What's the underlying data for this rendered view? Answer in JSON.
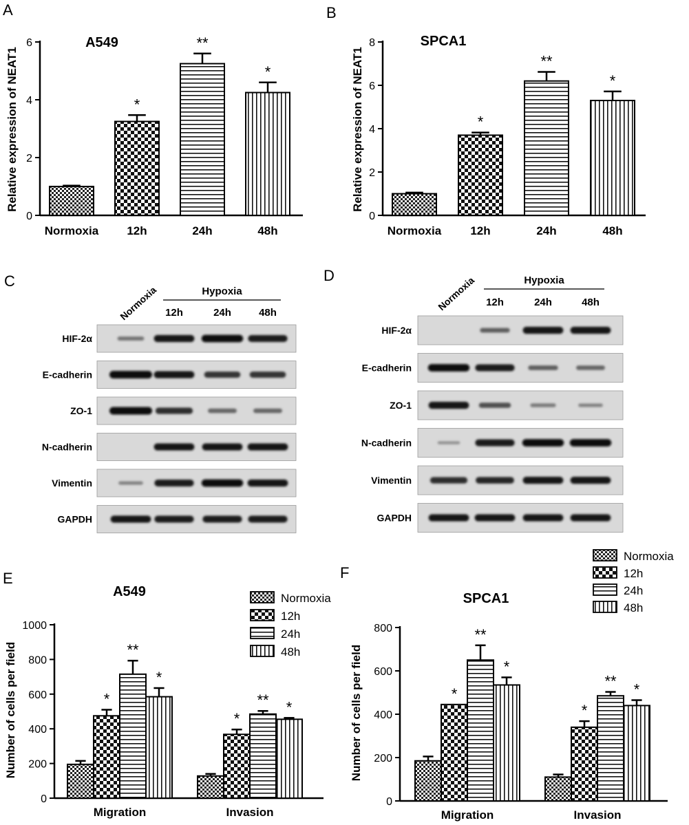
{
  "panels": {
    "A": {
      "letter": "A",
      "title": "A549",
      "ylabel": "Relative expression of NEAT1"
    },
    "B": {
      "letter": "B",
      "title": "SPCA1",
      "ylabel": "Relative expression of NEAT1"
    },
    "C": {
      "letter": "C"
    },
    "D": {
      "letter": "D"
    },
    "E": {
      "letter": "E",
      "title": "A549",
      "ylabel": "Number of cells per field"
    },
    "F": {
      "letter": "F",
      "title": "SPCA1",
      "ylabel": "Number of cells per field"
    }
  },
  "legend": [
    "Normoxia",
    "12h",
    "24h",
    "48h"
  ],
  "blots": {
    "C": {
      "normoxia_label": "Normoxia",
      "hypoxia_label": "Hypoxia",
      "timepoints": [
        "12h",
        "24h",
        "48h"
      ],
      "proteins": [
        "HIF-2α",
        "E-cadherin",
        "ZO-1",
        "N-cadherin",
        "Vimentin",
        "GAPDH"
      ],
      "intensity": [
        [
          0.25,
          0.9,
          0.95,
          0.85
        ],
        [
          1.0,
          0.9,
          0.7,
          0.7
        ],
        [
          1.0,
          0.75,
          0.35,
          0.35
        ],
        [
          0.0,
          0.9,
          0.9,
          0.9
        ],
        [
          0.15,
          0.85,
          0.95,
          0.9
        ],
        [
          0.9,
          0.85,
          0.85,
          0.85
        ]
      ]
    },
    "D": {
      "normoxia_label": "Normoxia",
      "hypoxia_label": "Hypoxia",
      "timepoints": [
        "12h",
        "24h",
        "48h"
      ],
      "proteins": [
        "HIF-2α",
        "E-cadherin",
        "ZO-1",
        "N-cadherin",
        "Vimentin",
        "GAPDH"
      ],
      "intensity": [
        [
          0.0,
          0.4,
          0.9,
          0.9
        ],
        [
          0.95,
          0.85,
          0.4,
          0.35
        ],
        [
          0.9,
          0.5,
          0.2,
          0.15
        ],
        [
          0.05,
          0.85,
          0.95,
          0.95
        ],
        [
          0.75,
          0.8,
          0.9,
          0.9
        ],
        [
          0.9,
          0.9,
          0.9,
          0.9
        ]
      ]
    }
  },
  "chart_data": [
    {
      "panel": "A",
      "type": "bar",
      "title": "A549",
      "xlabel": "",
      "ylabel": "Relative expression of NEAT1",
      "categories": [
        "Normoxia",
        "12h",
        "24h",
        "48h"
      ],
      "values": [
        1.0,
        3.25,
        5.25,
        4.25
      ],
      "errors": [
        0.03,
        0.22,
        0.35,
        0.35
      ],
      "significance": [
        "",
        "*",
        "**",
        "*"
      ],
      "ylim": [
        0,
        6
      ],
      "yticks": [
        0,
        2,
        4,
        6
      ]
    },
    {
      "panel": "B",
      "type": "bar",
      "title": "SPCA1",
      "xlabel": "",
      "ylabel": "Relative expression of NEAT1",
      "categories": [
        "Normoxia",
        "12h",
        "24h",
        "48h"
      ],
      "values": [
        1.0,
        3.7,
        6.2,
        5.3
      ],
      "errors": [
        0.05,
        0.12,
        0.42,
        0.42
      ],
      "significance": [
        "",
        "*",
        "**",
        "*"
      ],
      "ylim": [
        0,
        8
      ],
      "yticks": [
        0,
        2,
        4,
        6,
        8
      ]
    },
    {
      "panel": "E",
      "type": "bar",
      "title": "A549",
      "xlabel": "",
      "ylabel": "Number of cells per field",
      "categories": [
        "Migration",
        "Invasion"
      ],
      "series": [
        {
          "name": "Normoxia",
          "values": [
            195,
            128
          ],
          "errors": [
            20,
            12
          ],
          "significance": [
            "",
            ""
          ]
        },
        {
          "name": "12h",
          "values": [
            475,
            368
          ],
          "errors": [
            35,
            28
          ],
          "significance": [
            "*",
            "*"
          ]
        },
        {
          "name": "24h",
          "values": [
            715,
            485
          ],
          "errors": [
            78,
            18
          ],
          "significance": [
            "**",
            "**"
          ]
        },
        {
          "name": "48h",
          "values": [
            585,
            455
          ],
          "errors": [
            50,
            8
          ],
          "significance": [
            "*",
            "*"
          ]
        }
      ],
      "ylim": [
        0,
        1000
      ],
      "yticks": [
        0,
        200,
        400,
        600,
        800,
        1000
      ]
    },
    {
      "panel": "F",
      "type": "bar",
      "title": "SPCA1",
      "xlabel": "",
      "ylabel": "Number of cells per field",
      "categories": [
        "Migration",
        "Invasion"
      ],
      "series": [
        {
          "name": "Normoxia",
          "values": [
            185,
            110
          ],
          "errors": [
            20,
            12
          ],
          "significance": [
            "",
            ""
          ]
        },
        {
          "name": "12h",
          "values": [
            445,
            340
          ],
          "errors": [
            0,
            28
          ],
          "significance": [
            "*",
            "*"
          ]
        },
        {
          "name": "24h",
          "values": [
            650,
            485
          ],
          "errors": [
            68,
            18
          ],
          "significance": [
            "**",
            "**"
          ]
        },
        {
          "name": "48h",
          "values": [
            535,
            440
          ],
          "errors": [
            35,
            25
          ],
          "significance": [
            "*",
            "*"
          ]
        }
      ],
      "ylim": [
        0,
        800
      ],
      "yticks": [
        0,
        200,
        400,
        600,
        800
      ]
    }
  ]
}
